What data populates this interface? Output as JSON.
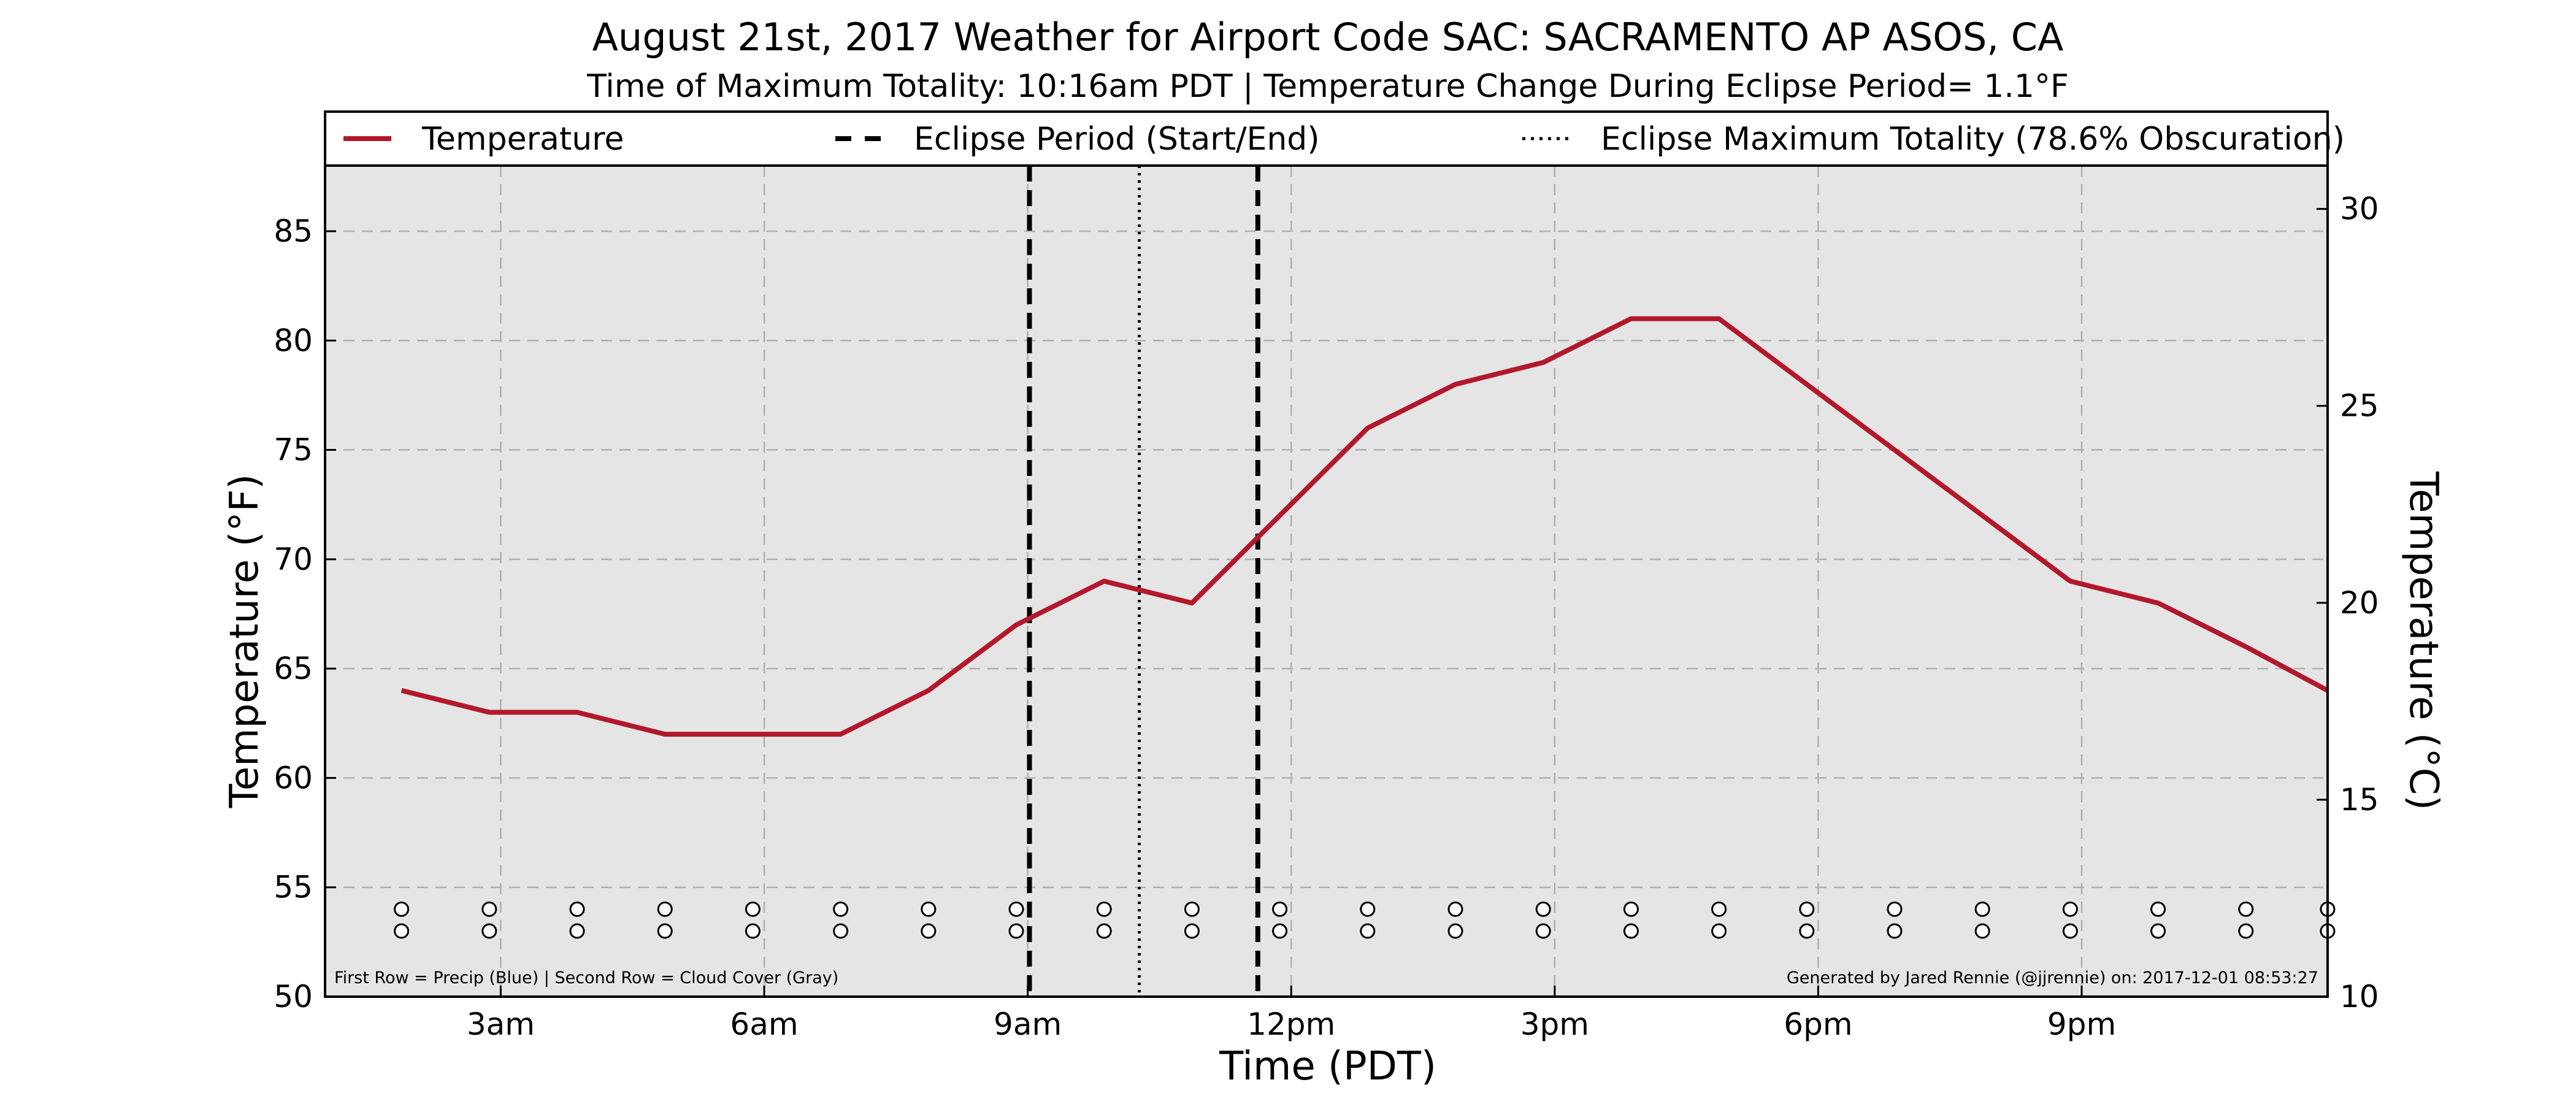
{
  "chart_data": {
    "type": "line",
    "title": "August 21st, 2017 Weather for Airport Code SAC: SACRAMENTO AP ASOS, CA",
    "subtitle": "Time of Maximum Totality: 10:16am PDT | Temperature Change During Eclipse Period= 1.1°F",
    "xlabel": "Time (PDT)",
    "ylabel": "Temperature (°F)",
    "ylabel_right": "Temperature (°C)",
    "xlim": [
      1.0,
      23.8
    ],
    "ylim": [
      50,
      88
    ],
    "ylim_right": [
      10,
      31.1
    ],
    "x_ticks": [
      {
        "x": 3,
        "label": "3am"
      },
      {
        "x": 6,
        "label": "6am"
      },
      {
        "x": 9,
        "label": "9am"
      },
      {
        "x": 12,
        "label": "12pm"
      },
      {
        "x": 15,
        "label": "3pm"
      },
      {
        "x": 18,
        "label": "6pm"
      },
      {
        "x": 21,
        "label": "9pm"
      }
    ],
    "y_ticks": [
      {
        "y": 50,
        "label": "50"
      },
      {
        "y": 55,
        "label": "55"
      },
      {
        "y": 60,
        "label": "60"
      },
      {
        "y": 65,
        "label": "65"
      },
      {
        "y": 70,
        "label": "70"
      },
      {
        "y": 75,
        "label": "75"
      },
      {
        "y": 80,
        "label": "80"
      },
      {
        "y": 85,
        "label": "85"
      }
    ],
    "y_ticks_right": [
      {
        "y": 10,
        "label": "10"
      },
      {
        "y": 15,
        "label": "15"
      },
      {
        "y": 20,
        "label": "20"
      },
      {
        "y": 25,
        "label": "25"
      },
      {
        "y": 30,
        "label": "30"
      }
    ],
    "grid": true,
    "series": [
      {
        "name": "Temperature",
        "color": "#b2182b",
        "x": [
          1.87,
          2.87,
          3.87,
          4.87,
          5.87,
          6.87,
          7.87,
          8.87,
          9.87,
          10.87,
          11.87,
          12.87,
          13.87,
          14.87,
          15.87,
          16.87,
          17.87,
          18.87,
          19.87,
          20.87,
          21.87,
          22.87,
          23.8
        ],
        "values": [
          64,
          63,
          63,
          62,
          62,
          62,
          64,
          67,
          69,
          68,
          72,
          76,
          78,
          79,
          81,
          81,
          78,
          75,
          72,
          69,
          68,
          66,
          64
        ]
      }
    ],
    "vertical_lines": [
      {
        "name": "Eclipse Period (Start/End)",
        "x": 9.02,
        "style": "dashed"
      },
      {
        "name": "Eclipse Period (Start/End)",
        "x": 11.62,
        "style": "dashed"
      },
      {
        "name": "Eclipse Maximum Totality (78.6% Obscuration)",
        "x": 10.27,
        "style": "dotted"
      }
    ],
    "legend": {
      "placement": "top",
      "entries": [
        {
          "label": "Temperature",
          "style": "solid",
          "color": "#b2182b"
        },
        {
          "label": "Eclipse Period (Start/End)",
          "style": "dashed",
          "color": "#000000"
        },
        {
          "label": "Eclipse Maximum Totality (78.6% Obscuration)",
          "style": "dotted",
          "color": "#000000"
        }
      ]
    },
    "marker_rows": {
      "x": [
        1.87,
        2.87,
        3.87,
        4.87,
        5.87,
        6.87,
        7.87,
        8.87,
        9.87,
        10.87,
        11.87,
        12.87,
        13.87,
        14.87,
        15.87,
        16.87,
        17.87,
        18.87,
        19.87,
        20.87,
        21.87,
        22.87,
        23.8
      ],
      "rows": [
        {
          "name": "Precip",
          "y": 54
        },
        {
          "name": "Cloud Cover",
          "y": 53
        }
      ]
    },
    "footnote_left": "First Row = Precip (Blue) | Second Row = Cloud Cover (Gray)",
    "footnote_right": "Generated by Jared Rennie (@jjrennie) on: 2017-12-01 08:53:27",
    "colors": {
      "plot_background": "#e5e5e5",
      "grid": "#b0b0b0",
      "temperature_line": "#b2182b",
      "eclipse_lines": "#000000"
    }
  }
}
